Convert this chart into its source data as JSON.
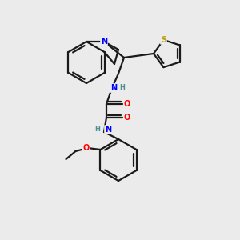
{
  "background_color": "#ebebeb",
  "atom_colors": {
    "N": "#0000ff",
    "O": "#ff0000",
    "S": "#b8a000",
    "H": "#4a9090",
    "C": "#1a1a1a"
  },
  "line_color": "#1a1a1a",
  "line_width": 1.6,
  "figsize": [
    3.0,
    3.0
  ],
  "dpi": 100
}
